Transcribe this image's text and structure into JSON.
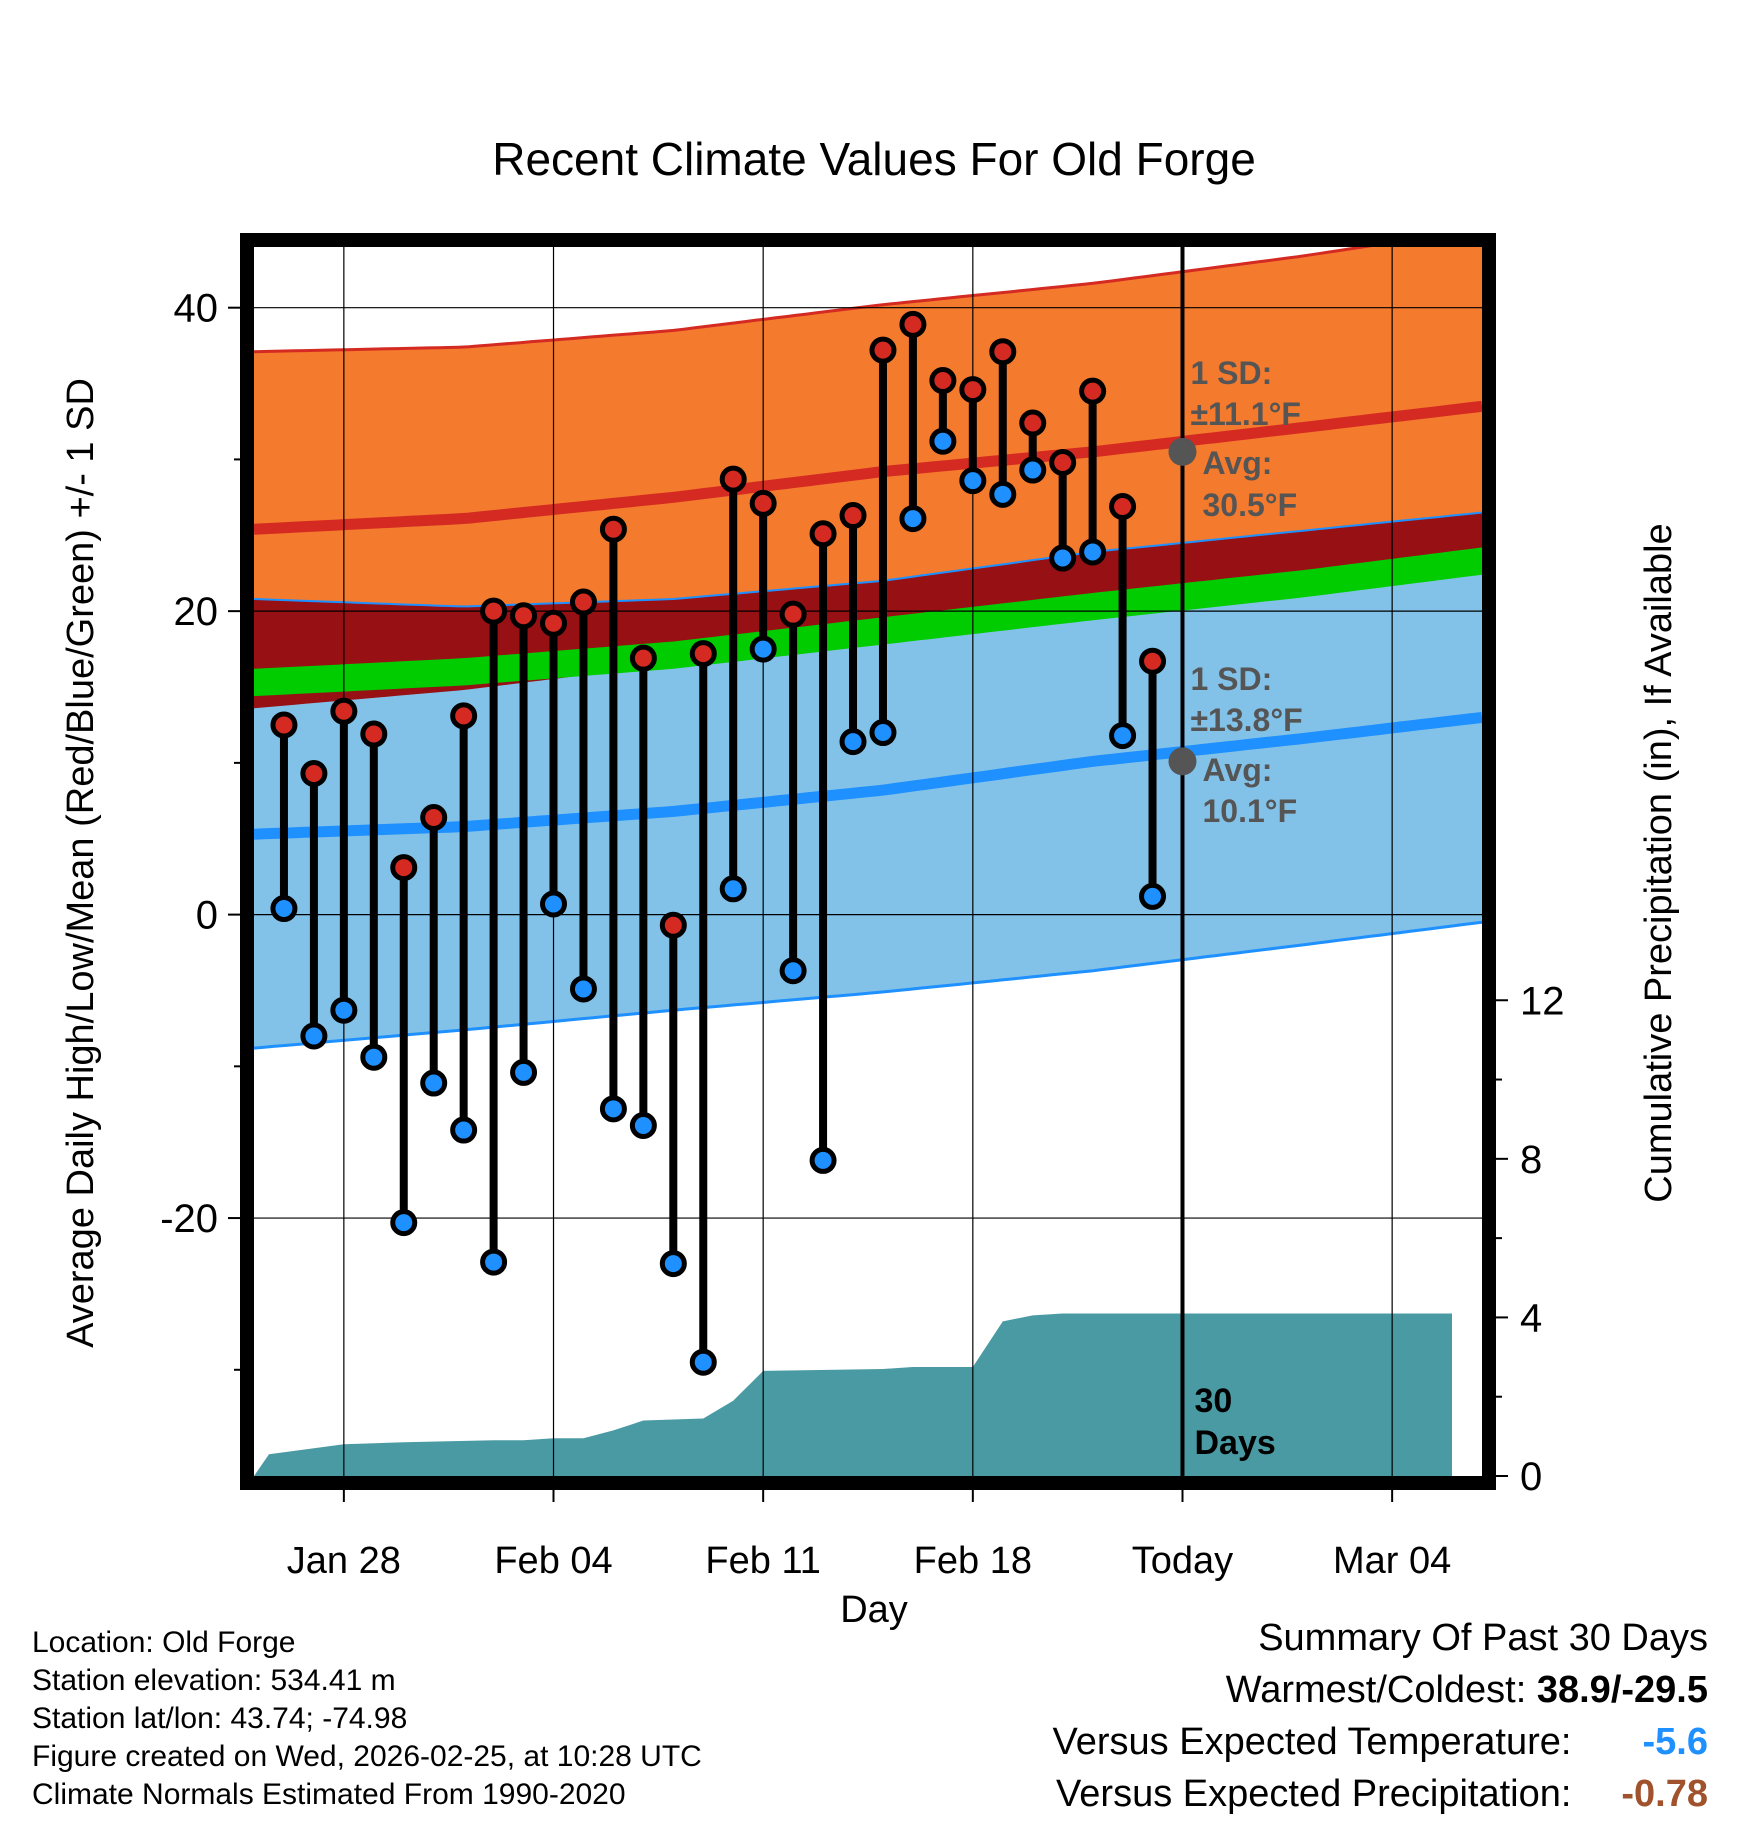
{
  "chart_data": {
    "type": "line",
    "title": "Recent Climate Values For Old Forge",
    "xlabel": "Day",
    "ylabel": "Average Daily High/Low/Mean (Red/Blue/Green) +/- 1 SD",
    "y2label": "Cumulative Precipitation (in), If Available",
    "x_tick_labels": [
      "Jan 28",
      "Feb 04",
      "Feb 11",
      "Feb 18",
      "Today",
      "Mar 04"
    ],
    "x_tick_days": [
      3,
      10,
      17,
      24,
      31,
      38
    ],
    "x_range_days": [
      0,
      41
    ],
    "today_day": 31,
    "ylim": [
      -37,
      44
    ],
    "y_ticks": [
      -20,
      0,
      20,
      40
    ],
    "y2lim": [
      0,
      31
    ],
    "y2_ticks": [
      0,
      4,
      8,
      12
    ],
    "days": [
      0,
      7,
      14,
      21,
      28,
      35,
      41
    ],
    "normal_high": [
      25.4,
      26.1,
      27.5,
      29.2,
      30.5,
      32.1,
      33.5
    ],
    "normal_high_upper": [
      37.1,
      37.4,
      38.5,
      40.2,
      41.6,
      43.4,
      45.2
    ],
    "normal_high_lower": [
      13.6,
      14.8,
      16.5,
      18.6,
      20.4,
      22.4,
      24.0
    ],
    "normal_low": [
      5.3,
      5.8,
      6.8,
      8.2,
      10.1,
      11.6,
      13.0
    ],
    "normal_low_upper": [
      20.8,
      20.3,
      20.8,
      22.0,
      23.9,
      25.3,
      26.5
    ],
    "normal_low_lower": [
      -8.8,
      -7.6,
      -6.3,
      -5.1,
      -3.7,
      -2.0,
      -0.5
    ],
    "normal_mean": [
      15.3,
      16.0,
      17.1,
      18.7,
      20.3,
      21.8,
      23.3
    ],
    "obs_days": [
      1,
      2,
      3,
      4,
      5,
      6,
      7,
      8,
      9,
      10,
      11,
      12,
      13,
      14,
      15,
      16,
      17,
      18,
      19,
      20,
      21,
      22,
      23,
      24,
      25,
      26,
      27,
      28,
      29,
      30
    ],
    "obs_high": [
      12.5,
      9.3,
      13.4,
      11.9,
      3.1,
      6.4,
      13.1,
      20.0,
      19.7,
      19.2,
      20.6,
      25.4,
      16.9,
      -0.7,
      17.2,
      28.7,
      27.1,
      19.8,
      25.1,
      26.3,
      37.2,
      38.9,
      35.2,
      34.6,
      37.1,
      32.4,
      29.8,
      34.5,
      26.9,
      16.7
    ],
    "obs_low": [
      0.4,
      -8.0,
      -6.3,
      -9.4,
      -20.3,
      -11.1,
      -14.2,
      -22.9,
      -10.4,
      0.7,
      -4.9,
      -12.8,
      -13.9,
      -23.0,
      -29.5,
      1.7,
      17.5,
      -3.7,
      -16.2,
      11.4,
      12.0,
      26.1,
      31.2,
      28.6,
      27.7,
      29.3,
      23.5,
      23.9,
      11.8,
      1.2
    ],
    "precip_days": [
      0,
      0.5,
      3,
      5,
      8,
      9,
      10,
      11,
      12,
      13,
      15,
      16,
      17,
      21,
      22,
      24,
      25,
      26,
      27,
      28,
      31,
      40
    ],
    "precip_cumulative": [
      0.0,
      0.55,
      0.8,
      0.85,
      0.9,
      0.9,
      0.95,
      0.95,
      1.15,
      1.4,
      1.45,
      1.9,
      2.65,
      2.7,
      2.75,
      2.75,
      3.9,
      4.05,
      4.1,
      4.1,
      4.1,
      4.1
    ],
    "annotations": {
      "high_sd_label": "1 SD:",
      "high_sd_value": "±11.1°F",
      "high_avg_label": "Avg:",
      "high_avg_value": "30.5°F",
      "low_sd_label": "1 SD:",
      "low_sd_value": "±13.8°F",
      "low_avg_label": "Avg:",
      "low_avg_value": "10.1°F",
      "days_number": "30",
      "days_word": "Days"
    },
    "colors": {
      "high_band": "#f47a2d",
      "high_line": "#d42a22",
      "low_band": "#83c2e8",
      "low_line": "#1e90ff",
      "overlap": "#961014",
      "mean_band": "#00cc00",
      "precip": "#4a9aa4",
      "annotation": "#555555",
      "warmest": "#000000",
      "temp_anomaly": "#1e90ff",
      "precip_anomaly": "#a0522d"
    }
  },
  "info": {
    "location": "Location: Old Forge",
    "elevation": "Station elevation: 534.41 m",
    "latlon": "Station lat/lon: 43.74; -74.98",
    "created": "Figure created on Wed, 2026-02-25, at 10:28 UTC",
    "normals": "Climate Normals Estimated From 1990-2020"
  },
  "summary": {
    "heading": "Summary Of Past 30 Days",
    "warmest_label": "Warmest/Coldest: ",
    "warmest_value": "38.9/-29.5",
    "temp_label": "Versus Expected Temperature:",
    "temp_value": "-5.6",
    "precip_label": "Versus Expected Precipitation:",
    "precip_value": "-0.78"
  }
}
